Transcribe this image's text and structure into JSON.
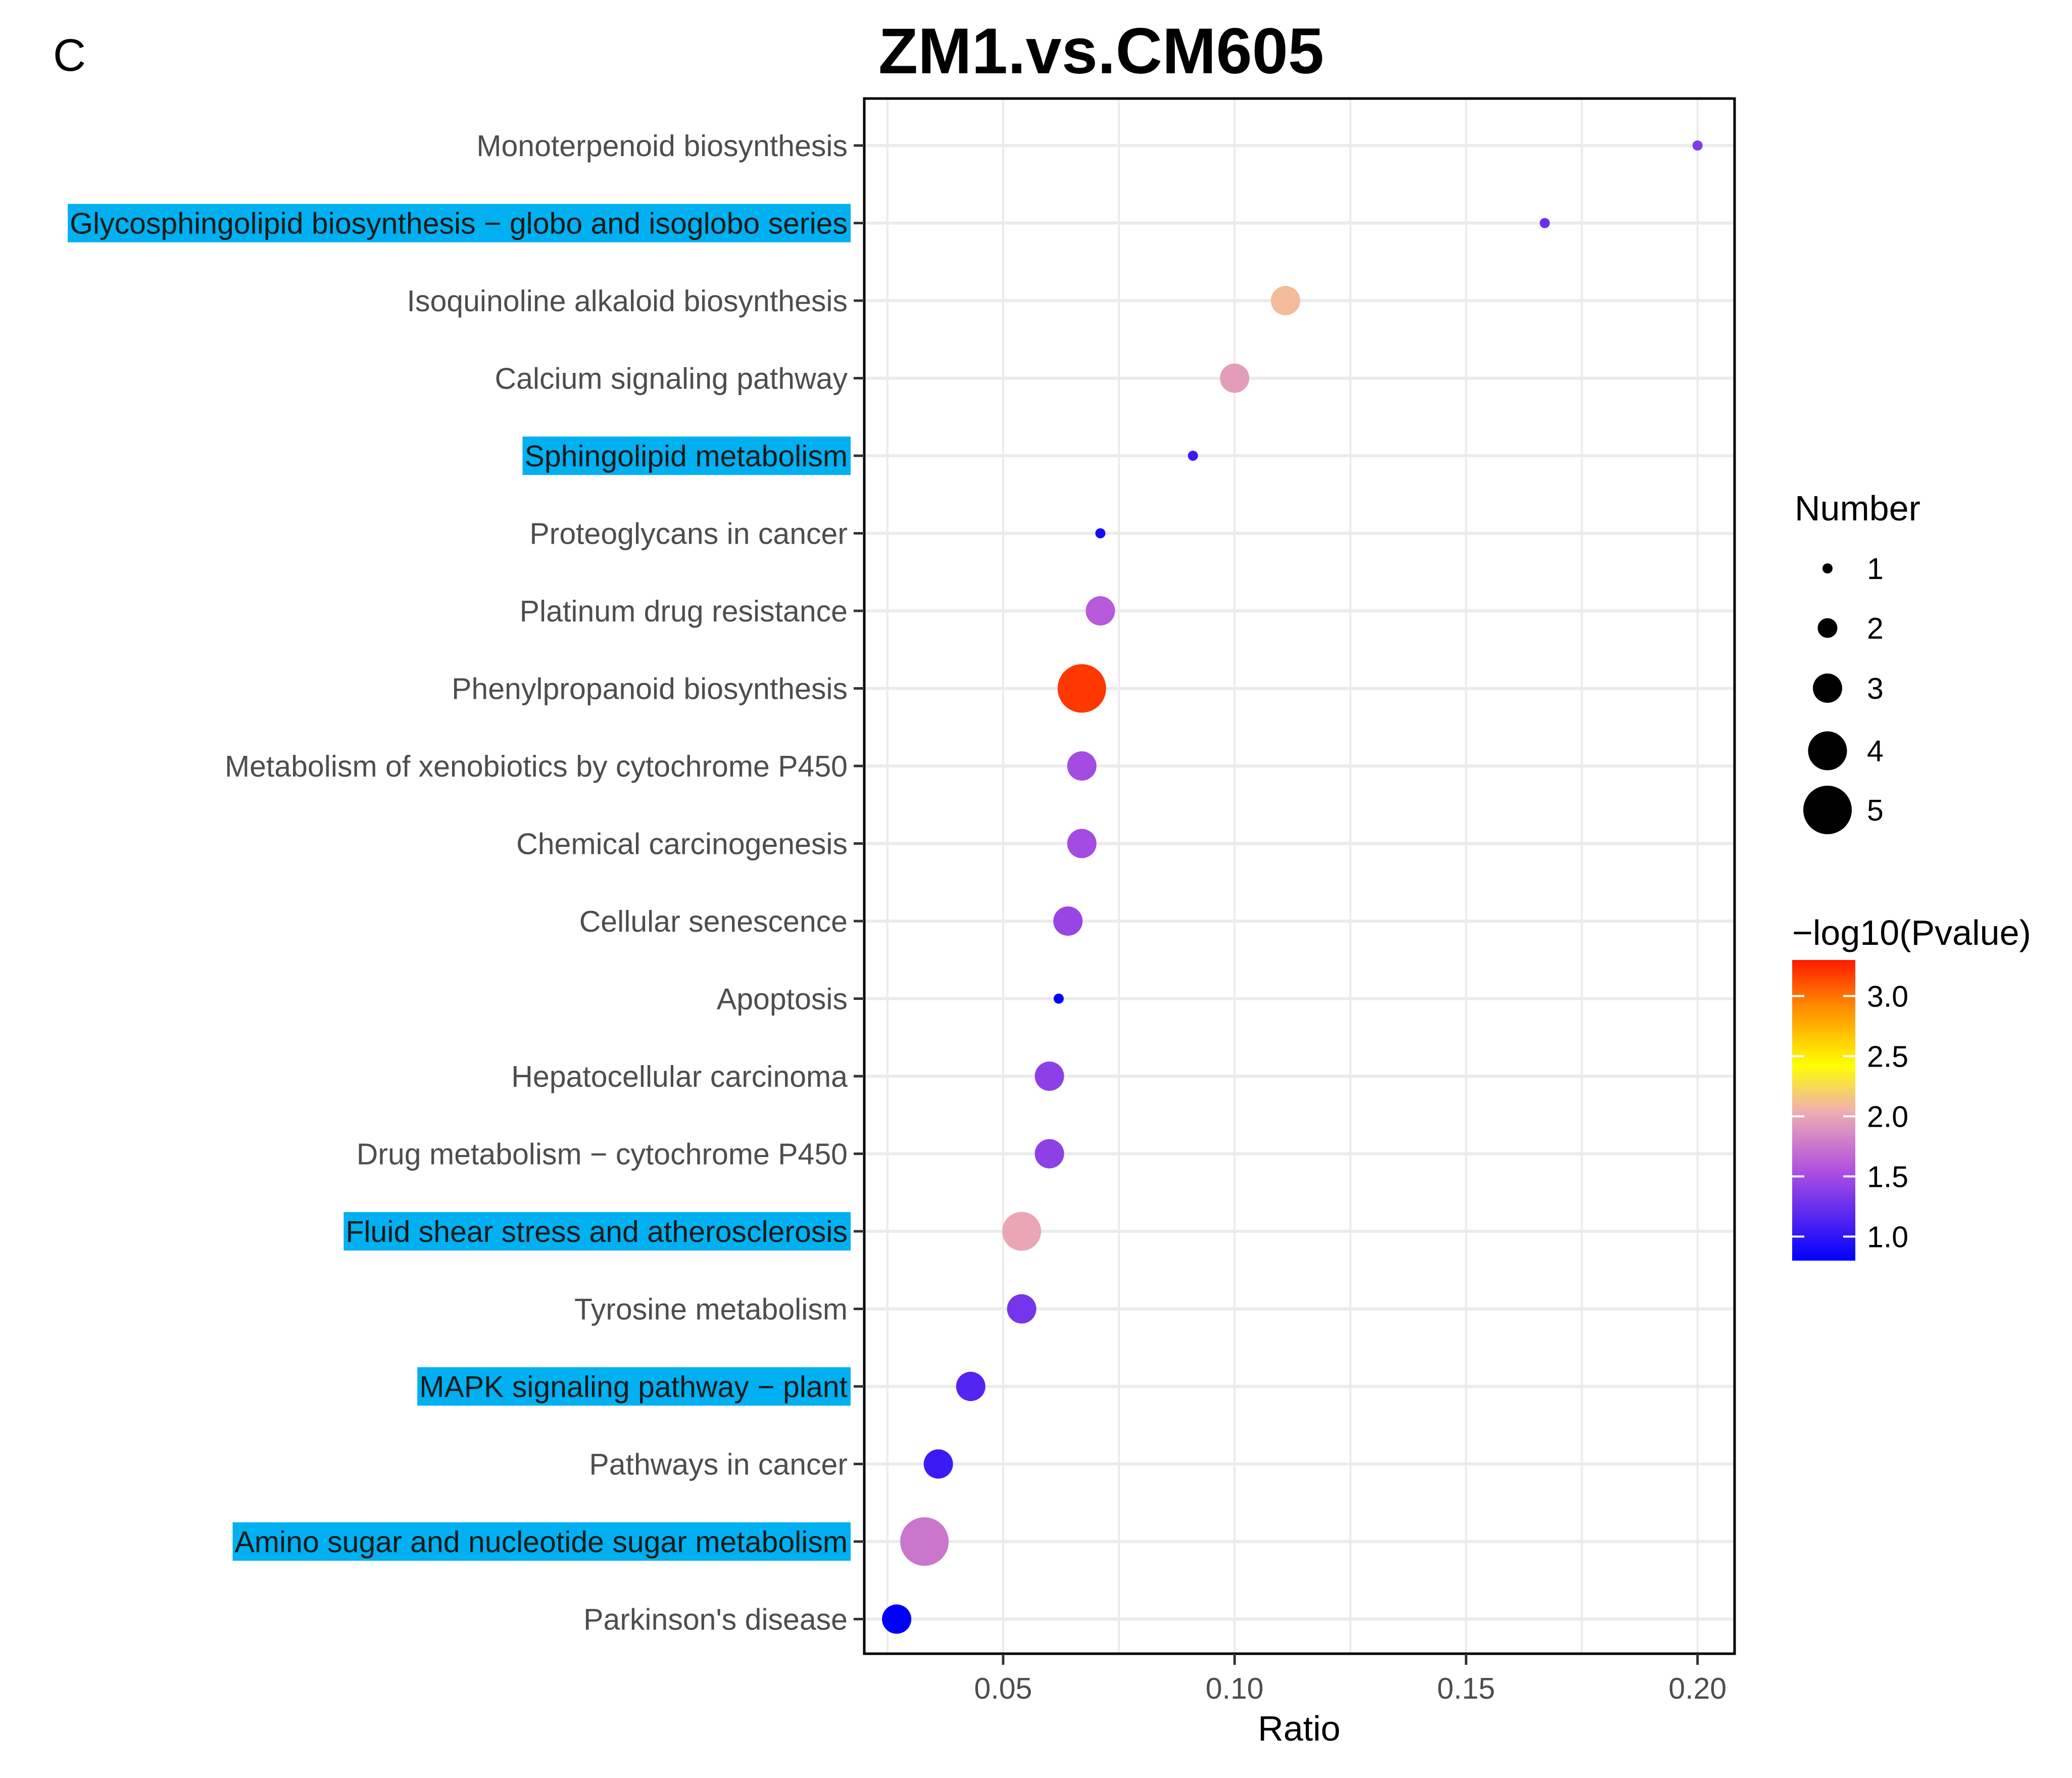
{
  "panel_label": "C",
  "colors": {
    "highlight": "#00b0f0",
    "grid": "#ebebeb",
    "axis": "#000000",
    "low": "#0000ff",
    "mid": "#ffff00",
    "high": "#ff0000"
  },
  "chart_data": {
    "type": "scatter",
    "title": "ZM1.vs.CM605",
    "xlabel": "Ratio",
    "ylabel": "",
    "xlim": [
      0.02,
      0.208
    ],
    "xticks": [
      0.05,
      0.1,
      0.15,
      0.2
    ],
    "xtick_labels": [
      "0.05",
      "0.10",
      "0.15",
      "0.20"
    ],
    "grid": true,
    "points": [
      {
        "pathway": "Monoterpenoid biosynthesis",
        "ratio": 0.2,
        "number": 1,
        "neglog10p": 1.35,
        "highlighted": false
      },
      {
        "pathway": "Glycosphingolipid biosynthesis − globo and isoglobo series",
        "ratio": 0.167,
        "number": 1,
        "neglog10p": 1.25,
        "highlighted": true
      },
      {
        "pathway": "Isoquinoline alkaloid biosynthesis",
        "ratio": 0.111,
        "number": 3,
        "neglog10p": 2.1,
        "highlighted": false
      },
      {
        "pathway": "Calcium signaling pathway",
        "ratio": 0.1,
        "number": 3,
        "neglog10p": 1.95,
        "highlighted": false
      },
      {
        "pathway": "Sphingolipid metabolism",
        "ratio": 0.091,
        "number": 1,
        "neglog10p": 1.05,
        "highlighted": true
      },
      {
        "pathway": "Proteoglycans in cancer",
        "ratio": 0.071,
        "number": 1,
        "neglog10p": 0.9,
        "highlighted": false
      },
      {
        "pathway": "Platinum drug resistance",
        "ratio": 0.071,
        "number": 3,
        "neglog10p": 1.6,
        "highlighted": false
      },
      {
        "pathway": "Phenylpropanoid biosynthesis",
        "ratio": 0.067,
        "number": 5,
        "neglog10p": 3.2,
        "highlighted": false
      },
      {
        "pathway": "Metabolism of xenobiotics by cytochrome P450",
        "ratio": 0.067,
        "number": 3,
        "neglog10p": 1.5,
        "highlighted": false
      },
      {
        "pathway": "Chemical carcinogenesis",
        "ratio": 0.067,
        "number": 3,
        "neglog10p": 1.5,
        "highlighted": false
      },
      {
        "pathway": "Cellular senescence",
        "ratio": 0.064,
        "number": 3,
        "neglog10p": 1.45,
        "highlighted": false
      },
      {
        "pathway": "Apoptosis",
        "ratio": 0.062,
        "number": 1,
        "neglog10p": 0.8,
        "highlighted": false
      },
      {
        "pathway": "Hepatocellular carcinoma",
        "ratio": 0.06,
        "number": 3,
        "neglog10p": 1.4,
        "highlighted": false
      },
      {
        "pathway": "Drug metabolism − cytochrome P450",
        "ratio": 0.06,
        "number": 3,
        "neglog10p": 1.4,
        "highlighted": false
      },
      {
        "pathway": "Fluid shear stress and atherosclerosis",
        "ratio": 0.054,
        "number": 4,
        "neglog10p": 2.0,
        "highlighted": true
      },
      {
        "pathway": "Tyrosine metabolism",
        "ratio": 0.054,
        "number": 3,
        "neglog10p": 1.3,
        "highlighted": false
      },
      {
        "pathway": "MAPK signaling pathway − plant",
        "ratio": 0.043,
        "number": 3,
        "neglog10p": 1.15,
        "highlighted": true
      },
      {
        "pathway": "Pathways in cancer",
        "ratio": 0.036,
        "number": 3,
        "neglog10p": 1.05,
        "highlighted": false
      },
      {
        "pathway": "Amino sugar and nucleotide sugar metabolism",
        "ratio": 0.033,
        "number": 5,
        "neglog10p": 1.75,
        "highlighted": true
      },
      {
        "pathway": "Parkinson's disease",
        "ratio": 0.027,
        "number": 3,
        "neglog10p": 0.8,
        "highlighted": false
      }
    ],
    "size_legend": {
      "title": "Number",
      "values": [
        1,
        2,
        3,
        4,
        5
      ],
      "labels": [
        "1",
        "2",
        "3",
        "4",
        "5"
      ]
    },
    "color_legend": {
      "title": "−log10(Pvalue)",
      "range": [
        0.8,
        3.3
      ],
      "ticks": [
        1.0,
        1.5,
        2.0,
        2.5,
        3.0
      ],
      "tick_labels": [
        "1.0",
        "1.5",
        "2.0",
        "2.5",
        "3.0"
      ]
    },
    "legend_position": "right"
  }
}
